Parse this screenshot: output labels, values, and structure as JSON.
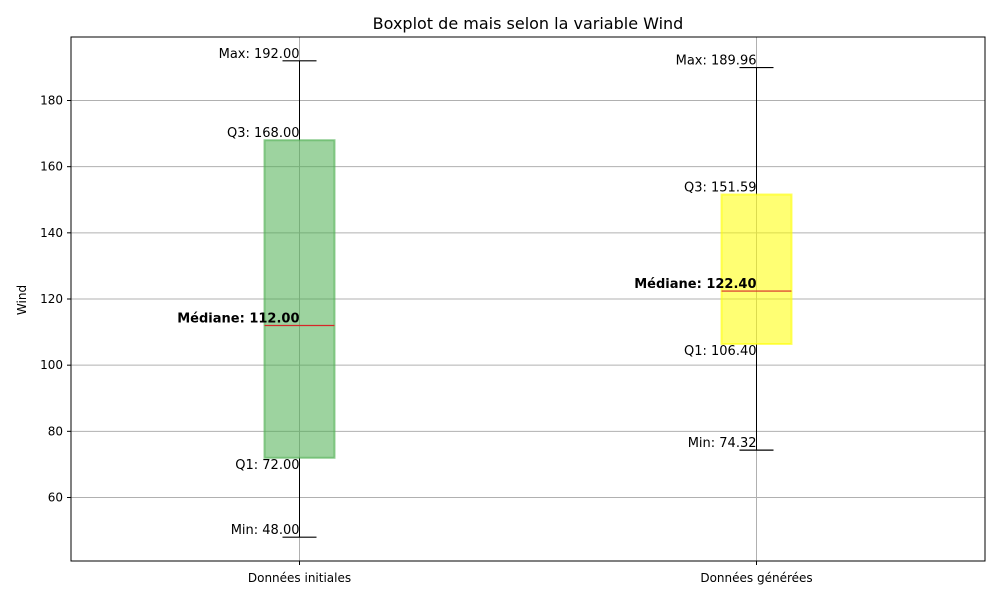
{
  "chart_data": {
    "type": "boxplot",
    "title": "Boxplot de mais selon la variable Wind",
    "xlabel": "",
    "ylabel": "Wind",
    "ylim": [
      40.8,
      199.2
    ],
    "yticks": [
      60,
      80,
      100,
      120,
      140,
      160,
      180
    ],
    "grid": true,
    "categories": [
      "Données initiales",
      "Données générées"
    ],
    "boxes": [
      {
        "category": "Données initiales",
        "color": "#4caf50",
        "min": 48.0,
        "q1": 72.0,
        "median": 112.0,
        "q3": 168.0,
        "max": 192.0,
        "labels": {
          "max": "Max: 192.00",
          "q3": "Q3: 168.00",
          "median": "Médiane: 112.00",
          "q1": "Q1: 72.00",
          "min": "Min: 48.00"
        }
      },
      {
        "category": "Données générées",
        "color": "#ffff00",
        "min": 74.32,
        "q1": 106.4,
        "median": 122.4,
        "q3": 151.59,
        "max": 189.96,
        "labels": {
          "max": "Max: 189.96",
          "q3": "Q3: 151.59",
          "median": "Médiane: 122.40",
          "q1": "Q1: 106.40",
          "min": "Min: 74.32"
        }
      }
    ],
    "median_color": "#d62728"
  }
}
